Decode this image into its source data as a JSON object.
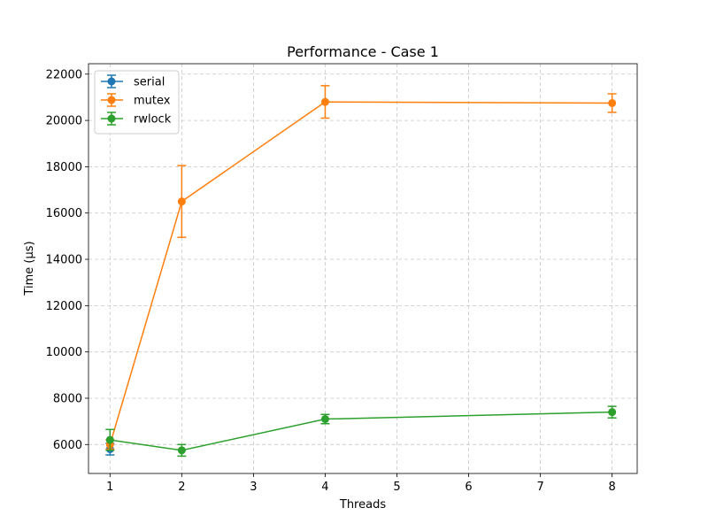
{
  "chart_data": {
    "type": "line",
    "title": "Performance - Case 1",
    "xlabel": "Threads",
    "ylabel": "Time (µs)",
    "x": [
      1,
      2,
      4,
      8
    ],
    "xlim": [
      0.7,
      8.35
    ],
    "ylim": [
      4750,
      22450
    ],
    "xticks": [
      1,
      2,
      3,
      4,
      5,
      6,
      7,
      8
    ],
    "yticks": [
      6000,
      8000,
      10000,
      12000,
      14000,
      16000,
      18000,
      20000,
      22000
    ],
    "grid": true,
    "legend_position": "top-left",
    "series": [
      {
        "name": "serial",
        "color": "#1f77b4",
        "x": [
          1
        ],
        "values": [
          5800
        ],
        "errors": [
          250
        ]
      },
      {
        "name": "mutex",
        "color": "#ff7f0e",
        "x": [
          1,
          2,
          4,
          8
        ],
        "values": [
          6000,
          16500,
          20800,
          20750
        ],
        "errors": [
          200,
          1550,
          700,
          400
        ]
      },
      {
        "name": "rwlock",
        "color": "#2ca02c",
        "x": [
          1,
          2,
          4,
          8
        ],
        "values": [
          6200,
          5750,
          7100,
          7400
        ],
        "errors": [
          450,
          250,
          200,
          250
        ]
      }
    ]
  }
}
